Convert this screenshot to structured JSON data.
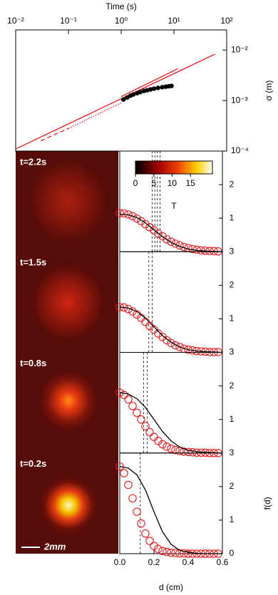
{
  "chart_data": [
    {
      "type": "line",
      "xlabel": "Time (s)",
      "ylabel": "σ (m)",
      "xscale": "log",
      "yscale": "log",
      "xlim": [
        0.01,
        100
      ],
      "ylim": [
        0.0001,
        0.025
      ],
      "xticks": [
        {
          "value": 0.01,
          "label": "10⁻²"
        },
        {
          "value": 0.1,
          "label": "10⁻¹"
        },
        {
          "value": 1,
          "label": "10⁰"
        },
        {
          "value": 10,
          "label": "10¹"
        },
        {
          "value": 100,
          "label": "10²"
        }
      ],
      "yticks": [
        {
          "value": 0.0001,
          "label": "10⁻⁴"
        },
        {
          "value": 0.001,
          "label": "10⁻³"
        },
        {
          "value": 0.01,
          "label": "10⁻²"
        }
      ],
      "series": [
        {
          "color": "#e41a1c",
          "linestyle": "solid",
          "x": [
            0.01,
            60
          ],
          "values": [
            0.00011,
            0.0083
          ]
        },
        {
          "color": "#e41a1c",
          "linestyle": "solid",
          "x": [
            1,
            12
          ],
          "values": [
            0.0012,
            0.0043
          ]
        },
        {
          "color": "#e41a1c",
          "linestyle": "dashed",
          "x": [
            0.03,
            0.1
          ],
          "values": [
            0.00016,
            0.00028
          ]
        },
        {
          "color": "#e41a1c",
          "linestyle": "dotted",
          "x": [
            0.1,
            1
          ],
          "values": [
            0.00028,
            0.0009
          ]
        },
        {
          "color": "#000000",
          "marker": "circle",
          "x": [
            1.1,
            1.3,
            1.5,
            1.7,
            2,
            2.3,
            2.7,
            3.1,
            3.6,
            4.2,
            5,
            6,
            7,
            8,
            9
          ],
          "values": [
            0.00105,
            0.00115,
            0.00125,
            0.00132,
            0.0014,
            0.00147,
            0.00155,
            0.0016,
            0.00166,
            0.00172,
            0.00178,
            0.00184,
            0.00188,
            0.00192,
            0.00195
          ]
        }
      ]
    },
    {
      "type": "profile",
      "label": "t=2.2s",
      "xlim": [
        0,
        0.6
      ],
      "ylim": [
        0,
        3
      ],
      "yticks": [
        1,
        2
      ],
      "vlines": [
        0.19,
        0.205,
        0.22,
        0.235
      ],
      "colorbar": {
        "label": "T",
        "range": [
          0,
          21
        ],
        "ticks": [
          0,
          5,
          10,
          15
        ]
      },
      "series": [
        {
          "color": "#e41a1c",
          "marker": "circle",
          "x": [
            0,
            0.025,
            0.05,
            0.075,
            0.1,
            0.125,
            0.15,
            0.175,
            0.2,
            0.225,
            0.25,
            0.275,
            0.3,
            0.325,
            0.35,
            0.375,
            0.4,
            0.425,
            0.45,
            0.475,
            0.5,
            0.525,
            0.55,
            0.575
          ],
          "values": [
            1.15,
            1.14,
            1.11,
            1.06,
            0.99,
            0.91,
            0.82,
            0.73,
            0.64,
            0.54,
            0.46,
            0.37,
            0.3,
            0.24,
            0.19,
            0.14,
            0.11,
            0.08,
            0.06,
            0.04,
            0.03,
            0.02,
            0.02,
            0.01
          ]
        },
        {
          "color": "#000000",
          "x": [
            0,
            0.05,
            0.1,
            0.15,
            0.2,
            0.25,
            0.3,
            0.35,
            0.4,
            0.45,
            0.5,
            0.55,
            0.6
          ],
          "values": [
            1.12,
            1.1,
            1.02,
            0.86,
            0.65,
            0.45,
            0.28,
            0.16,
            0.08,
            0.04,
            0.02,
            0.01,
            0
          ]
        }
      ]
    },
    {
      "type": "profile",
      "label": "t=1.5s",
      "xlim": [
        0,
        0.6
      ],
      "ylim": [
        0,
        3
      ],
      "yticks": [
        1,
        2,
        3
      ],
      "vlines": [
        0.17,
        0.19
      ],
      "series": [
        {
          "color": "#e41a1c",
          "marker": "circle",
          "x": [
            0,
            0.025,
            0.05,
            0.075,
            0.1,
            0.125,
            0.15,
            0.175,
            0.2,
            0.225,
            0.25,
            0.275,
            0.3,
            0.325,
            0.35,
            0.375,
            0.4,
            0.425,
            0.45,
            0.475,
            0.5,
            0.525,
            0.55,
            0.575
          ],
          "values": [
            1.35,
            1.34,
            1.29,
            1.22,
            1.13,
            1.03,
            0.91,
            0.79,
            0.68,
            0.56,
            0.46,
            0.36,
            0.28,
            0.21,
            0.16,
            0.11,
            0.08,
            0.06,
            0.04,
            0.03,
            0.02,
            0.01,
            0.01,
            0.01
          ]
        },
        {
          "color": "#000000",
          "x": [
            0,
            0.05,
            0.1,
            0.15,
            0.2,
            0.25,
            0.3,
            0.35,
            0.4,
            0.45,
            0.5,
            0.55,
            0.6
          ],
          "values": [
            1.35,
            1.32,
            1.22,
            1.02,
            0.76,
            0.5,
            0.3,
            0.16,
            0.08,
            0.04,
            0.02,
            0.01,
            0
          ]
        }
      ]
    },
    {
      "type": "profile",
      "label": "t=0.8s",
      "xlim": [
        0,
        0.6
      ],
      "ylim": [
        0,
        3
      ],
      "yticks": [
        1,
        2,
        3
      ],
      "vlines": [
        0.14,
        0.16
      ],
      "series": [
        {
          "color": "#e41a1c",
          "marker": "circle",
          "x": [
            0,
            0.025,
            0.05,
            0.075,
            0.1,
            0.125,
            0.15,
            0.175,
            0.2,
            0.225,
            0.25,
            0.275,
            0.3,
            0.325,
            0.35,
            0.375,
            0.4,
            0.425,
            0.45,
            0.475,
            0.5,
            0.525,
            0.55,
            0.575
          ],
          "values": [
            1.8,
            1.73,
            1.6,
            1.4,
            1.2,
            1,
            0.8,
            0.62,
            0.48,
            0.36,
            0.26,
            0.19,
            0.13,
            0.09,
            0.06,
            0.04,
            0.03,
            0.02,
            0.01,
            0.01,
            0.01,
            0,
            0,
            0
          ]
        },
        {
          "color": "#000000",
          "x": [
            0,
            0.05,
            0.1,
            0.15,
            0.2,
            0.25,
            0.3,
            0.35,
            0.4,
            0.45,
            0.5,
            0.55,
            0.6
          ],
          "values": [
            1.8,
            1.76,
            1.62,
            1.36,
            1,
            0.64,
            0.36,
            0.18,
            0.08,
            0.04,
            0.02,
            0.01,
            0
          ]
        }
      ]
    },
    {
      "type": "profile",
      "label": "t=0.2s",
      "scalebar": "2mm",
      "xlabel": "d (cm)",
      "ylabel": "f(d)",
      "xlim": [
        0,
        0.6
      ],
      "ylim": [
        0,
        3
      ],
      "xticks": [
        {
          "value": 0,
          "label": "0.0"
        },
        0.2,
        0.4,
        0.6
      ],
      "yticks": [
        0,
        1,
        2,
        3
      ],
      "vlines": [
        0.12
      ],
      "series": [
        {
          "color": "#e41a1c",
          "marker": "circle",
          "x": [
            0,
            0.025,
            0.05,
            0.075,
            0.1,
            0.125,
            0.15,
            0.175,
            0.2,
            0.225,
            0.25,
            0.275,
            0.3,
            0.325,
            0.35,
            0.375,
            0.4,
            0.425,
            0.45,
            0.475,
            0.5,
            0.525,
            0.55,
            0.575
          ],
          "values": [
            2.6,
            2.4,
            2.05,
            1.65,
            1.25,
            0.9,
            0.6,
            0.38,
            0.23,
            0.14,
            0.08,
            0.05,
            0.03,
            0.02,
            0.01,
            0.01,
            0,
            0,
            0,
            0,
            0,
            0,
            0,
            0
          ]
        },
        {
          "color": "#000000",
          "x": [
            0,
            0.05,
            0.1,
            0.15,
            0.2,
            0.25,
            0.3,
            0.35,
            0.4,
            0.45,
            0.5,
            0.55,
            0.6
          ],
          "values": [
            2.6,
            2.55,
            2.35,
            1.9,
            1.25,
            0.65,
            0.28,
            0.1,
            0.04,
            0.01,
            0,
            0,
            0
          ]
        }
      ]
    }
  ]
}
